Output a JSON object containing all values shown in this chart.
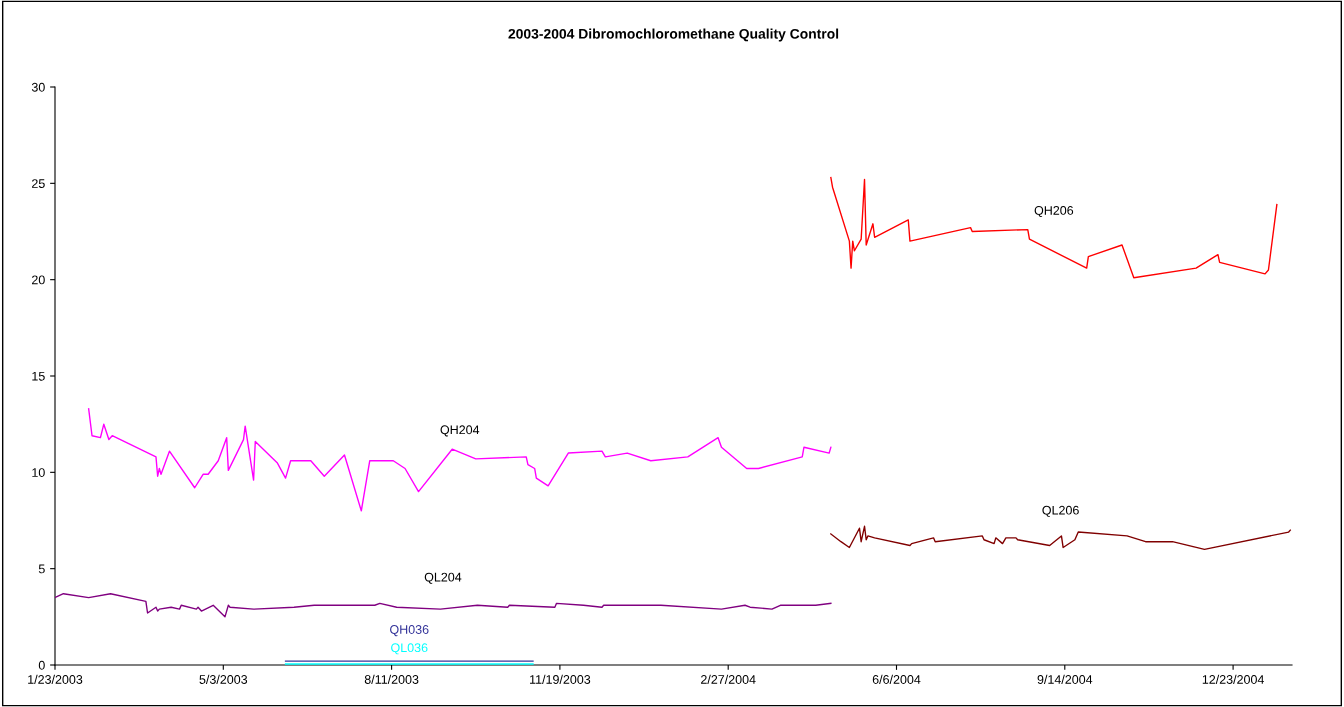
{
  "chart_data": {
    "type": "line",
    "title": "2003-2004 Dibromochloromethane Quality Control",
    "xlim": [
      "2003-01-23",
      "2005-01-27"
    ],
    "xticks": [
      {
        "value": "2003-01-23",
        "label": "1/23/2003"
      },
      {
        "value": "2003-05-03",
        "label": "5/3/2003"
      },
      {
        "value": "2003-08-11",
        "label": "8/11/2003"
      },
      {
        "value": "2003-11-19",
        "label": "11/19/2003"
      },
      {
        "value": "2004-02-27",
        "label": "2/27/2004"
      },
      {
        "value": "2004-06-06",
        "label": "6/6/2004"
      },
      {
        "value": "2004-09-14",
        "label": "9/14/2004"
      },
      {
        "value": "2004-12-23",
        "label": "12/23/2004"
      }
    ],
    "ylim": [
      0,
      30
    ],
    "yticks": [
      0,
      5,
      10,
      15,
      20,
      25,
      30
    ],
    "grid": false,
    "marker": "none",
    "line_style": "solid",
    "series": [
      {
        "name": "QH204",
        "color": "#ff00ff",
        "x": [
          "2003-02-12",
          "2003-02-14",
          "2003-02-19",
          "2003-02-21",
          "2003-02-24",
          "2003-02-26",
          "2003-03-24",
          "2003-03-25",
          "2003-03-26",
          "2003-03-27",
          "2003-04-01",
          "2003-04-16",
          "2003-04-21",
          "2003-04-24",
          "2003-04-30",
          "2003-05-05",
          "2003-05-06",
          "2003-05-15",
          "2003-05-16",
          "2003-05-21",
          "2003-05-22",
          "2003-06-04",
          "2003-06-09",
          "2003-06-12",
          "2003-06-24",
          "2003-07-02",
          "2003-07-14",
          "2003-07-24",
          "2003-07-29",
          "2003-08-12",
          "2003-08-19",
          "2003-08-27",
          "2003-09-16",
          "2003-09-30",
          "2003-10-30",
          "2003-10-31",
          "2003-11-04",
          "2003-11-05",
          "2003-11-12",
          "2003-11-24",
          "2003-12-14",
          "2003-12-16",
          "2003-12-29",
          "2004-01-12",
          "2004-02-03",
          "2004-02-21",
          "2004-02-23",
          "2004-03-09",
          "2004-03-16",
          "2004-04-11",
          "2004-04-12",
          "2004-04-27",
          "2004-04-28"
        ],
        "values": [
          13.3,
          11.9,
          11.8,
          12.5,
          11.7,
          11.9,
          10.8,
          9.8,
          10.2,
          9.9,
          11.1,
          9.2,
          9.9,
          9.9,
          10.6,
          11.8,
          10.1,
          11.7,
          12.4,
          9.6,
          11.6,
          10.5,
          9.7,
          10.6,
          10.6,
          9.8,
          10.9,
          8.0,
          10.6,
          10.6,
          10.2,
          9.0,
          11.2,
          10.7,
          10.8,
          10.4,
          10.2,
          9.7,
          9.3,
          11.0,
          11.1,
          10.8,
          11.0,
          10.6,
          10.8,
          11.8,
          11.3,
          10.2,
          10.2,
          10.8,
          11.3,
          11.0,
          11.3
        ]
      },
      {
        "name": "QL204",
        "color": "#800080",
        "x": [
          "2003-01-23",
          "2003-01-28",
          "2003-02-12",
          "2003-02-25",
          "2003-03-18",
          "2003-03-19",
          "2003-03-24",
          "2003-03-25",
          "2003-03-26",
          "2003-04-02",
          "2003-04-07",
          "2003-04-08",
          "2003-04-17",
          "2003-04-18",
          "2003-04-20",
          "2003-04-27",
          "2003-05-04",
          "2003-05-06",
          "2003-05-07",
          "2003-05-21",
          "2003-06-14",
          "2003-06-26",
          "2003-08-01",
          "2003-08-04",
          "2003-08-14",
          "2003-09-09",
          "2003-10-01",
          "2003-10-19",
          "2003-10-20",
          "2003-11-16",
          "2003-11-17",
          "2003-12-03",
          "2003-12-14",
          "2003-12-15",
          "2004-01-18",
          "2004-02-23",
          "2004-03-08",
          "2004-03-11",
          "2004-03-24",
          "2004-03-29",
          "2004-04-19",
          "2004-04-28"
        ],
        "values": [
          3.5,
          3.7,
          3.5,
          3.7,
          3.3,
          2.7,
          3.0,
          2.8,
          2.9,
          3.0,
          2.9,
          3.1,
          2.9,
          3.0,
          2.8,
          3.1,
          2.5,
          3.1,
          3.0,
          2.9,
          3.0,
          3.1,
          3.1,
          3.2,
          3.0,
          2.9,
          3.1,
          3.0,
          3.1,
          3.0,
          3.2,
          3.1,
          3.0,
          3.1,
          3.1,
          2.9,
          3.1,
          3.0,
          2.9,
          3.1,
          3.1,
          3.2
        ]
      },
      {
        "name": "QH036",
        "color": "#333399",
        "x": [
          "2003-06-09",
          "2003-11-03"
        ],
        "values": [
          0.2,
          0.2
        ]
      },
      {
        "name": "QL036",
        "color": "#00ffff",
        "x": [
          "2003-06-09",
          "2003-11-03"
        ],
        "values": [
          0.05,
          0.05
        ]
      },
      {
        "name": "QH206",
        "color": "#ff0000",
        "x": [
          "2004-04-28",
          "2004-04-29",
          "2004-05-09",
          "2004-05-10",
          "2004-05-11",
          "2004-05-12",
          "2004-05-16",
          "2004-05-18",
          "2004-05-19",
          "2004-05-23",
          "2004-05-24",
          "2004-06-13",
          "2004-06-14",
          "2004-07-20",
          "2004-07-21",
          "2004-08-23",
          "2004-08-24",
          "2004-09-27",
          "2004-09-28",
          "2004-10-18",
          "2004-10-25",
          "2004-12-01",
          "2004-12-14",
          "2004-12-15",
          "2005-01-11",
          "2005-01-13",
          "2005-01-18"
        ],
        "values": [
          25.3,
          24.8,
          22.0,
          20.6,
          22.0,
          21.5,
          22.1,
          25.2,
          21.8,
          22.9,
          22.2,
          23.1,
          22.0,
          22.7,
          22.5,
          22.6,
          22.1,
          20.6,
          21.2,
          21.8,
          20.1,
          20.6,
          21.3,
          20.9,
          20.3,
          20.5,
          23.9
        ]
      },
      {
        "name": "QL206",
        "color": "#800000",
        "x": [
          "2004-04-28",
          "2004-05-04",
          "2004-05-09",
          "2004-05-15",
          "2004-05-16",
          "2004-05-18",
          "2004-05-19",
          "2004-05-20",
          "2004-05-24",
          "2004-06-14",
          "2004-06-15",
          "2004-06-28",
          "2004-06-29",
          "2004-07-27",
          "2004-07-28",
          "2004-08-03",
          "2004-08-04",
          "2004-08-08",
          "2004-08-10",
          "2004-08-16",
          "2004-08-17",
          "2004-09-05",
          "2004-09-12",
          "2004-09-13",
          "2004-09-20",
          "2004-09-22",
          "2004-10-21",
          "2004-11-01",
          "2004-11-17",
          "2004-12-06",
          "2005-01-25",
          "2005-01-26"
        ],
        "values": [
          6.8,
          6.4,
          6.1,
          7.1,
          6.4,
          7.2,
          6.5,
          6.7,
          6.6,
          6.2,
          6.3,
          6.6,
          6.4,
          6.7,
          6.5,
          6.3,
          6.6,
          6.3,
          6.6,
          6.6,
          6.5,
          6.2,
          6.7,
          6.1,
          6.5,
          6.9,
          6.7,
          6.4,
          6.4,
          6.0,
          6.9,
          7.0
        ]
      }
    ]
  }
}
